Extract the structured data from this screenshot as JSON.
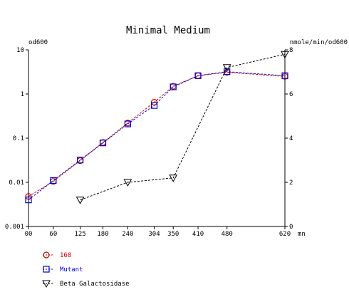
{
  "chart_data": {
    "type": "line",
    "title": "Minimal Medium",
    "y_left_label": "od600",
    "y_right_label": "nmole/min/od600",
    "x_unit": "mn",
    "x_ticks": [
      "00",
      "60",
      "125",
      "180",
      "240",
      "304",
      "350",
      "410",
      "480",
      "620"
    ],
    "x_tick_values": [
      0,
      60,
      125,
      180,
      240,
      304,
      350,
      410,
      480,
      620
    ],
    "xlim": [
      0,
      620
    ],
    "y_left_scale": "log",
    "y_left_ticks": [
      "10",
      "1",
      "0.1",
      "0.01",
      "0.001"
    ],
    "y_left_tick_values": [
      10,
      1,
      0.1,
      0.01,
      0.001
    ],
    "y_left_lim": [
      0.001,
      10
    ],
    "y_right_ticks": [
      "8",
      "6",
      "4",
      "2",
      "0"
    ],
    "y_right_tick_values": [
      8,
      6,
      4,
      2,
      0
    ],
    "y_right_lim": [
      0,
      8
    ],
    "grid": false,
    "legend_position": "bottom-left",
    "series": [
      {
        "name": "168",
        "axis": "left",
        "color": "#cc0000",
        "marker": "circle",
        "x": [
          0,
          60,
          125,
          180,
          240,
          304,
          350,
          410,
          480,
          620
        ],
        "y": [
          0.0048,
          0.0105,
          0.031,
          0.08,
          0.22,
          0.65,
          1.5,
          2.6,
          3.1,
          2.5
        ]
      },
      {
        "name": "Mutant",
        "axis": "left",
        "color": "#0000cc",
        "marker": "square",
        "x": [
          0,
          60,
          125,
          180,
          240,
          304,
          350,
          410,
          480,
          620
        ],
        "y": [
          0.004,
          0.011,
          0.032,
          0.078,
          0.21,
          0.55,
          1.45,
          2.6,
          3.2,
          2.6
        ]
      },
      {
        "name": "Beta Galactosidase",
        "axis": "right",
        "color": "#000000",
        "marker": "triangle-down",
        "x": [
          125,
          240,
          350,
          480,
          620
        ],
        "y": [
          1.2,
          2.0,
          2.2,
          7.2,
          7.8
        ]
      }
    ]
  }
}
